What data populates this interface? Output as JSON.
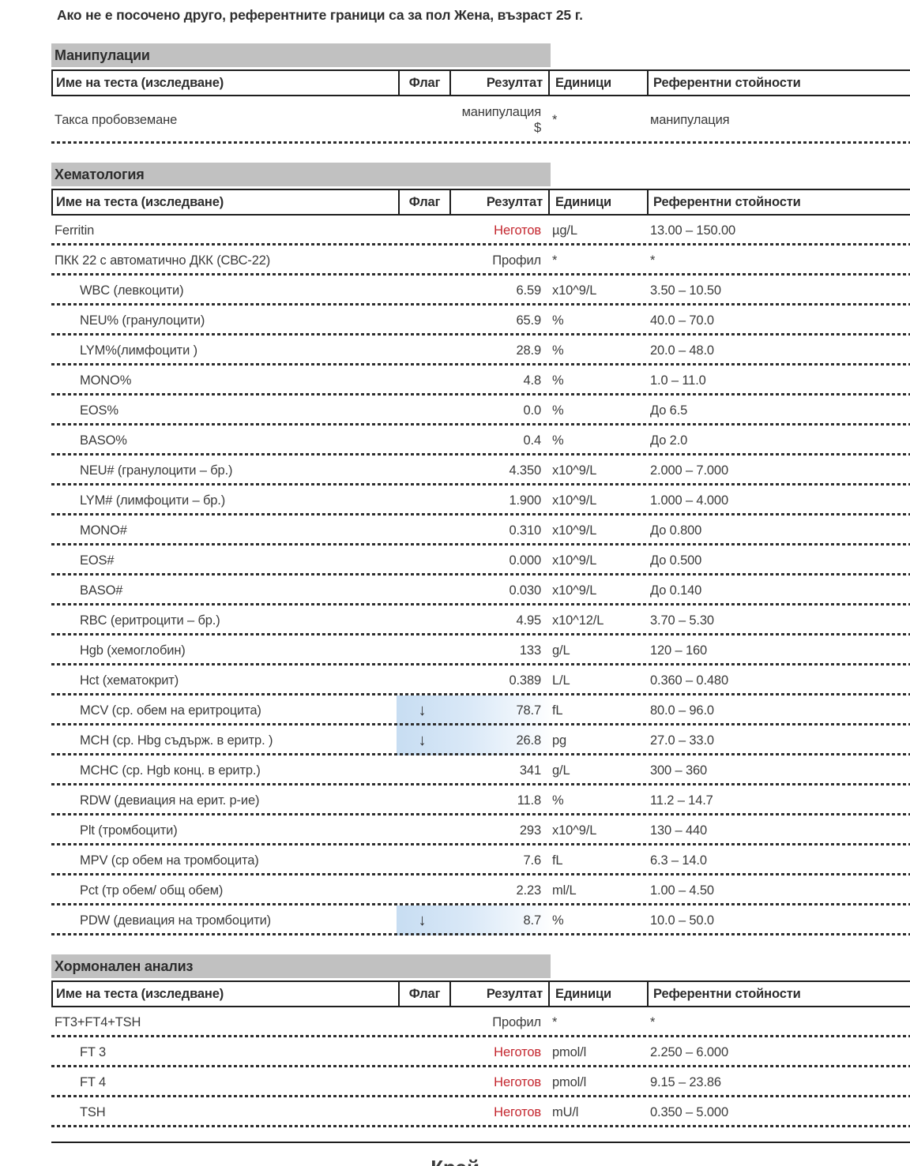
{
  "page": {
    "note": "Ако не е посочено друго, референтните граници са за пол Жена, възраст 25 г.",
    "end_label": "Край"
  },
  "table_columns": {
    "name": "Име на теста (изследване)",
    "flag": "Флаг",
    "result": "Резултат",
    "units": "Единици",
    "reference": "Референтни стойности"
  },
  "colors": {
    "section_bar_gray": "#c1c1c1",
    "pending_result_red": "#c4262e",
    "flag_highlight_blue": "#c7ddf2"
  },
  "sections": [
    {
      "id": "manipulacii",
      "title": "Манипулации",
      "rows": [
        {
          "name": "Такса пробовземане",
          "indent": false,
          "flag": "",
          "result": "манипулация",
          "result_line2": "$",
          "red": false,
          "units": "*",
          "reference": "манипулация"
        }
      ]
    },
    {
      "id": "hematologia",
      "title": "Хематология",
      "rows": [
        {
          "name": "Ferritin",
          "indent": false,
          "flag": "",
          "result": "Неготов",
          "red": true,
          "units": "µg/L",
          "reference": "13.00 – 150.00"
        },
        {
          "name": "ПКК 22 с автоматично ДКК (СВС-22)",
          "indent": false,
          "flag": "",
          "result": "Профил",
          "red": false,
          "units": "*",
          "reference": "*"
        },
        {
          "name": "WBC (левкоцити)",
          "indent": true,
          "flag": "",
          "result": "6.59",
          "red": false,
          "units": "x10^9/L",
          "reference": "3.50 – 10.50"
        },
        {
          "name": "NEU% (гранулоцити)",
          "indent": true,
          "flag": "",
          "result": "65.9",
          "red": false,
          "units": "%",
          "reference": "40.0 – 70.0"
        },
        {
          "name": "LYM%(лимфоцити )",
          "indent": true,
          "flag": "",
          "result": "28.9",
          "red": false,
          "units": "%",
          "reference": "20.0 – 48.0"
        },
        {
          "name": "MONO%",
          "indent": true,
          "flag": "",
          "result": "4.8",
          "red": false,
          "units": "%",
          "reference": "1.0 – 11.0"
        },
        {
          "name": "EOS%",
          "indent": true,
          "flag": "",
          "result": "0.0",
          "red": false,
          "units": "%",
          "reference": "До 6.5"
        },
        {
          "name": "BASO%",
          "indent": true,
          "flag": "",
          "result": "0.4",
          "red": false,
          "units": "%",
          "reference": "До 2.0"
        },
        {
          "name": "NEU# (гранулоцити – бр.)",
          "indent": true,
          "flag": "",
          "result": "4.350",
          "red": false,
          "units": "x10^9/L",
          "reference": "2.000 – 7.000"
        },
        {
          "name": "LYM# (лимфоцити – бр.)",
          "indent": true,
          "flag": "",
          "result": "1.900",
          "red": false,
          "units": "x10^9/L",
          "reference": "1.000 – 4.000"
        },
        {
          "name": "MONO#",
          "indent": true,
          "flag": "",
          "result": "0.310",
          "red": false,
          "units": "x10^9/L",
          "reference": "До 0.800"
        },
        {
          "name": "EOS#",
          "indent": true,
          "flag": "",
          "result": "0.000",
          "red": false,
          "units": "x10^9/L",
          "reference": "До 0.500"
        },
        {
          "name": "BASO#",
          "indent": true,
          "flag": "",
          "result": "0.030",
          "red": false,
          "units": "x10^9/L",
          "reference": "До 0.140"
        },
        {
          "name": "RBC (еритроцити – бр.)",
          "indent": true,
          "flag": "",
          "result": "4.95",
          "red": false,
          "units": "x10^12/L",
          "reference": "3.70 – 5.30"
        },
        {
          "name": "Hgb (хемоглобин)",
          "indent": true,
          "flag": "",
          "result": "133",
          "red": false,
          "units": "g/L",
          "reference": "120 – 160"
        },
        {
          "name": "Hct (хематокрит)",
          "indent": true,
          "flag": "",
          "result": "0.389",
          "red": false,
          "units": "L/L",
          "reference": "0.360 – 0.480"
        },
        {
          "name": "MCV (ср. обем на еритроцита)",
          "indent": true,
          "flag": "↓",
          "result": "78.7",
          "red": false,
          "units": "fL",
          "reference": "80.0 – 96.0"
        },
        {
          "name": "MCH (ср. Hbg съдърж. в еритр. )",
          "indent": true,
          "flag": "↓",
          "result": "26.8",
          "red": false,
          "units": "pg",
          "reference": "27.0 – 33.0"
        },
        {
          "name": "MCHC (ср. Hgb конц. в еритр.)",
          "indent": true,
          "flag": "",
          "result": "341",
          "red": false,
          "units": "g/L",
          "reference": "300 – 360"
        },
        {
          "name": "RDW (девиация на ерит. р-ие)",
          "indent": true,
          "flag": "",
          "result": "11.8",
          "red": false,
          "units": "%",
          "reference": "11.2 – 14.7"
        },
        {
          "name": "Plt (тромбоцити)",
          "indent": true,
          "flag": "",
          "result": "293",
          "red": false,
          "units": "x10^9/L",
          "reference": "130 – 440"
        },
        {
          "name": "MPV (ср обем на тромбоцита)",
          "indent": true,
          "flag": "",
          "result": "7.6",
          "red": false,
          "units": "fL",
          "reference": "6.3 – 14.0"
        },
        {
          "name": "Pct (тр обем/ общ обем)",
          "indent": true,
          "flag": "",
          "result": "2.23",
          "red": false,
          "units": "ml/L",
          "reference": "1.00 – 4.50"
        },
        {
          "name": "PDW (девиация на тромбоцити)",
          "indent": true,
          "flag": "↓",
          "result": "8.7",
          "red": false,
          "units": "%",
          "reference": "10.0 – 50.0"
        }
      ]
    },
    {
      "id": "hormonalen-analiz",
      "title": "Хормонален анализ",
      "rows": [
        {
          "name": "FT3+FT4+TSH",
          "indent": false,
          "flag": "",
          "result": "Профил",
          "red": false,
          "units": "*",
          "reference": "*"
        },
        {
          "name": "FT 3",
          "indent": true,
          "flag": "",
          "result": "Неготов",
          "red": true,
          "units": "pmol/l",
          "reference": "2.250 – 6.000"
        },
        {
          "name": "FT 4",
          "indent": true,
          "flag": "",
          "result": "Неготов",
          "red": true,
          "units": "pmol/l",
          "reference": "9.15 – 23.86"
        },
        {
          "name": "TSH",
          "indent": true,
          "flag": "",
          "result": "Неготов",
          "red": true,
          "units": "mU/l",
          "reference": "0.350 – 5.000"
        }
      ]
    }
  ]
}
